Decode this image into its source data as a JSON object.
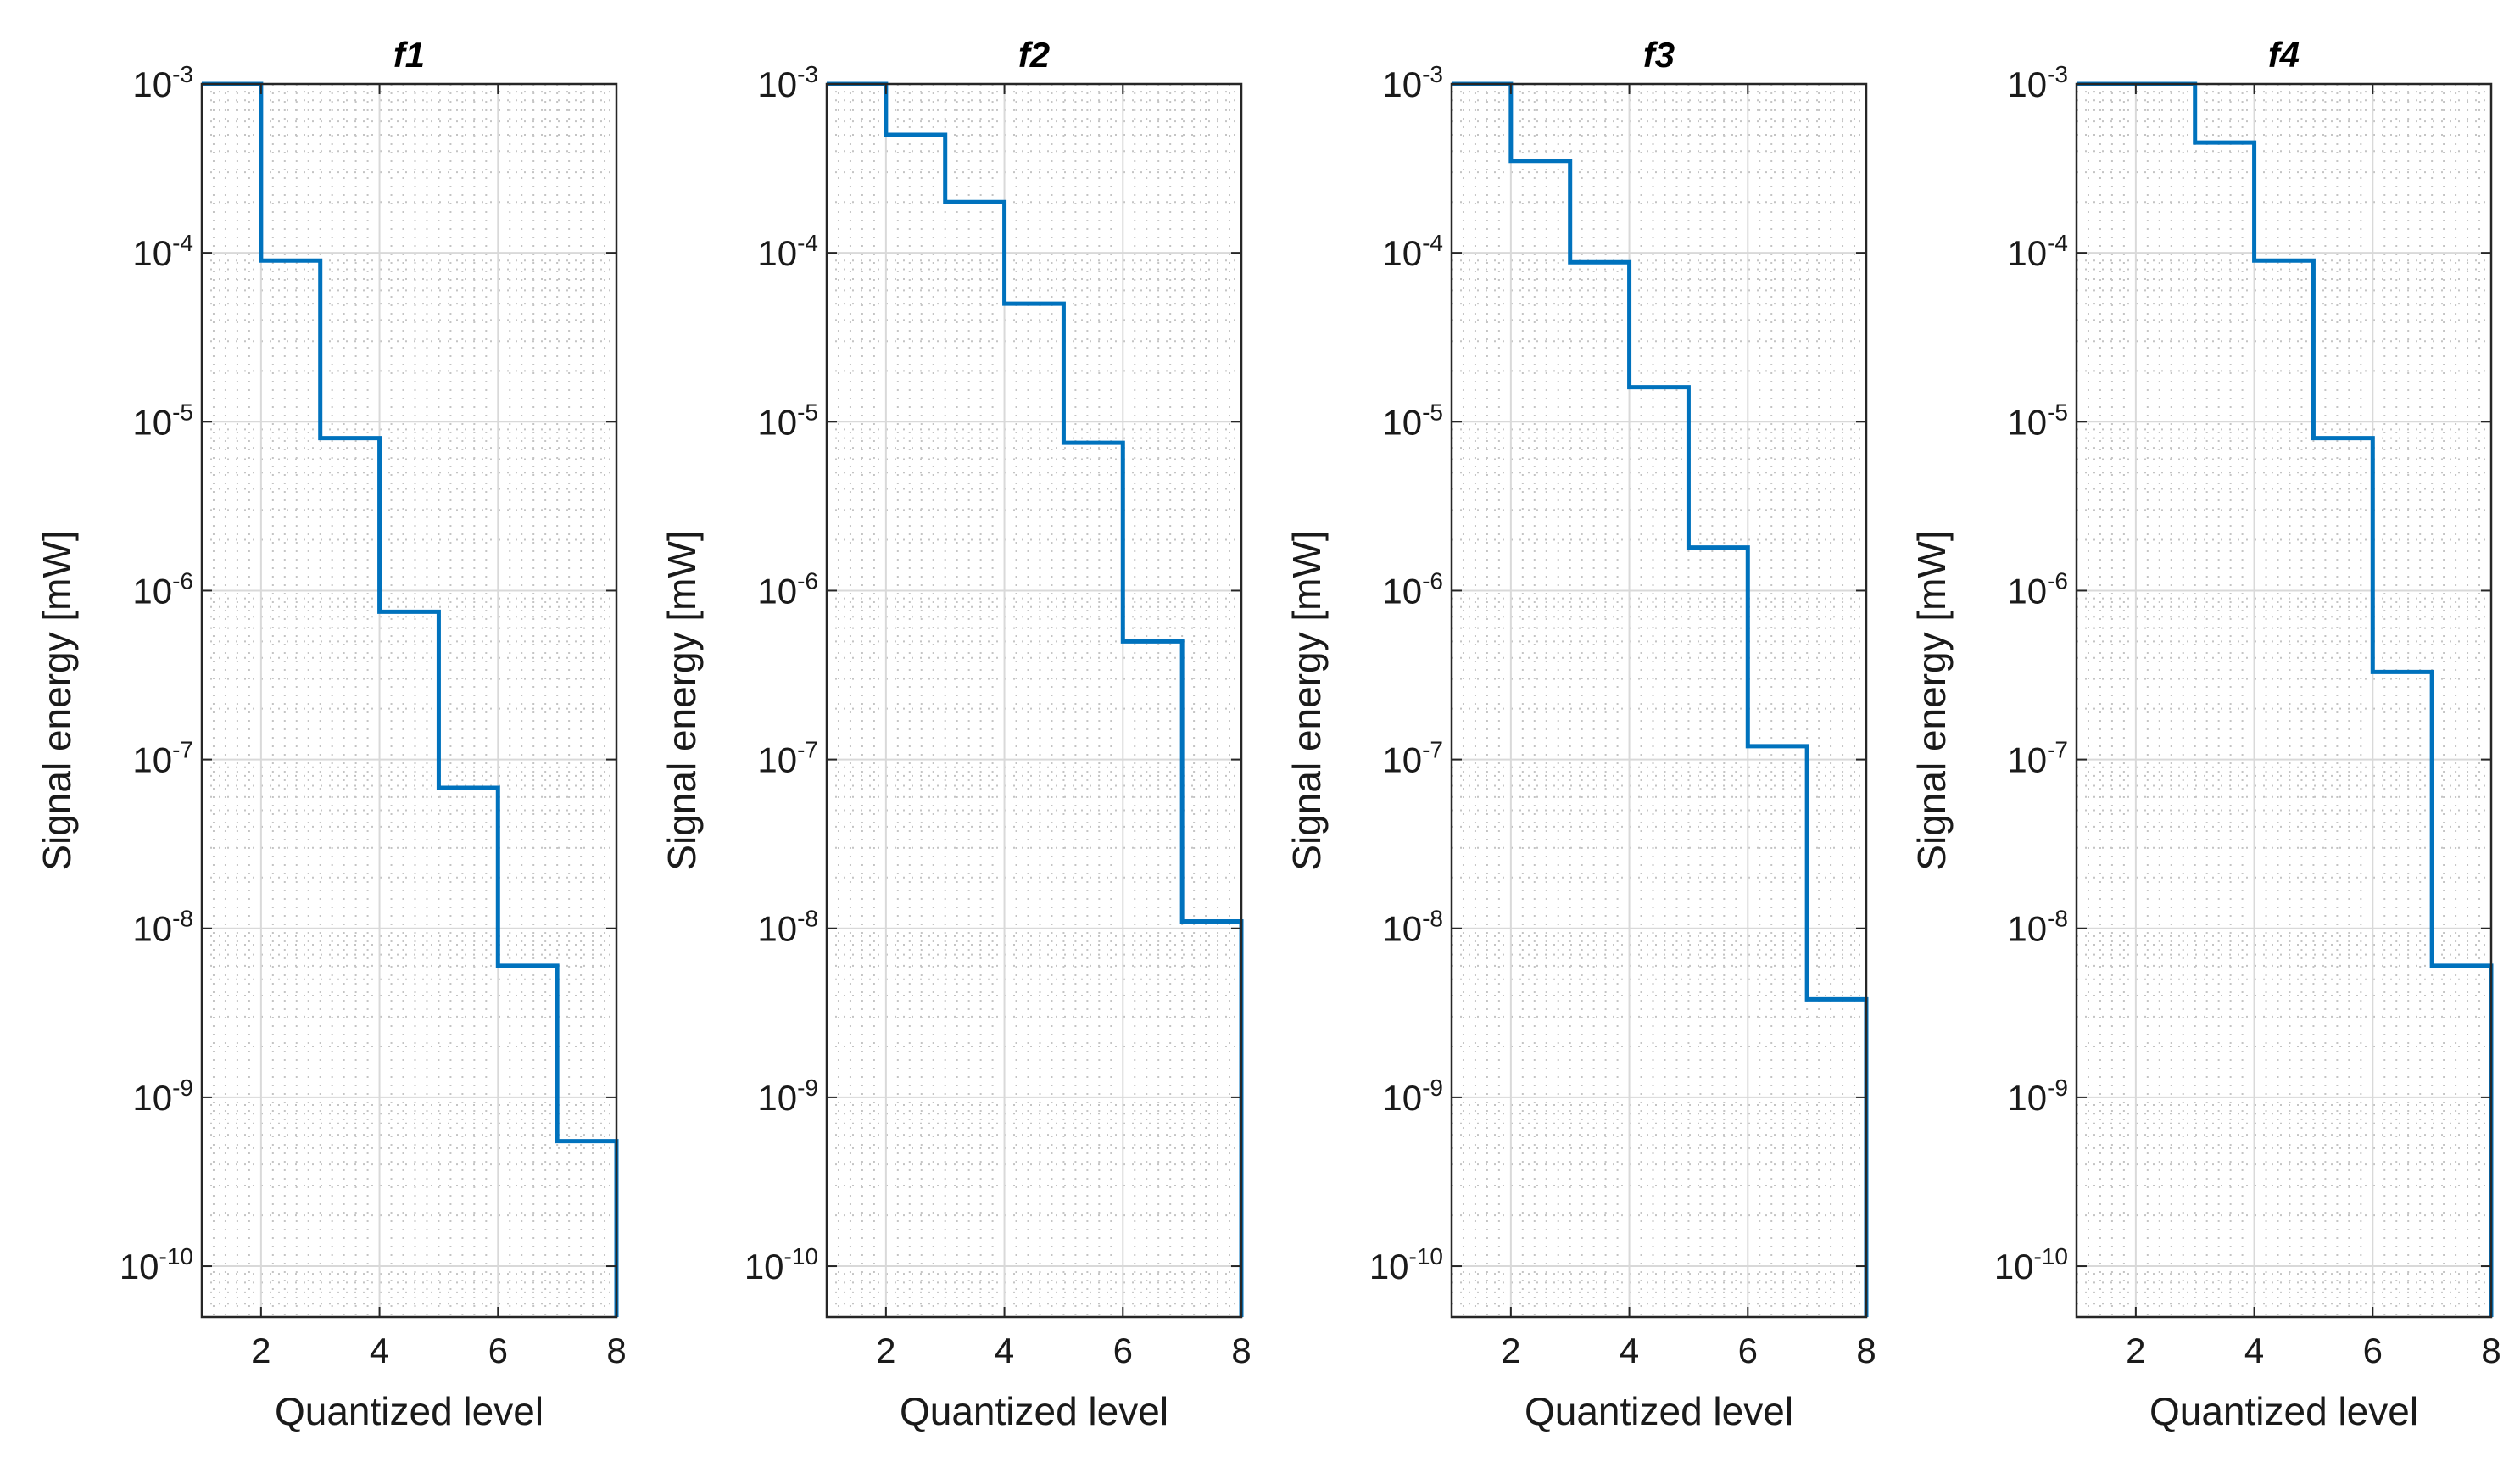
{
  "chart_data": [
    {
      "type": "line",
      "drawstyle": "steps-post",
      "title": "f1",
      "xlabel": "Quantized level",
      "ylabel": "Signal  energy [mW]",
      "xlim": [
        1,
        8
      ],
      "ylim": [
        5e-11,
        0.001
      ],
      "yscale": "log",
      "grid": true,
      "minor_grid": true,
      "xticks": [
        2,
        4,
        6,
        8
      ],
      "yticks": [
        {
          "base": "10",
          "exp": "-3",
          "value": 0.001
        },
        {
          "base": "10",
          "exp": "-4",
          "value": 0.0001
        },
        {
          "base": "10",
          "exp": "-5",
          "value": 1e-05
        },
        {
          "base": "10",
          "exp": "-6",
          "value": 1e-06
        },
        {
          "base": "10",
          "exp": "-7",
          "value": 1e-07
        },
        {
          "base": "10",
          "exp": "-8",
          "value": 1e-08
        },
        {
          "base": "10",
          "exp": "-9",
          "value": 1e-09
        },
        {
          "base": "10",
          "exp": "-10",
          "value": 1e-10
        }
      ],
      "line_color": "#0072BD",
      "x": [
        1,
        2,
        3,
        4,
        5,
        6,
        7,
        8
      ],
      "y": [
        0.001,
        9e-05,
        8e-06,
        7.5e-07,
        6.8e-08,
        6e-09,
        5.5e-10,
        5.5e-10
      ]
    },
    {
      "type": "line",
      "drawstyle": "steps-post",
      "title": "f2",
      "xlabel": "Quantized level",
      "ylabel": "Signal  energy [mW]",
      "xlim": [
        1,
        8
      ],
      "ylim": [
        5e-11,
        0.001
      ],
      "yscale": "log",
      "grid": true,
      "minor_grid": true,
      "xticks": [
        2,
        4,
        6,
        8
      ],
      "yticks": [
        {
          "base": "10",
          "exp": "-3",
          "value": 0.001
        },
        {
          "base": "10",
          "exp": "-4",
          "value": 0.0001
        },
        {
          "base": "10",
          "exp": "-5",
          "value": 1e-05
        },
        {
          "base": "10",
          "exp": "-6",
          "value": 1e-06
        },
        {
          "base": "10",
          "exp": "-7",
          "value": 1e-07
        },
        {
          "base": "10",
          "exp": "-8",
          "value": 1e-08
        },
        {
          "base": "10",
          "exp": "-9",
          "value": 1e-09
        },
        {
          "base": "10",
          "exp": "-10",
          "value": 1e-10
        }
      ],
      "line_color": "#0072BD",
      "x": [
        1,
        2,
        3,
        4,
        5,
        6,
        7,
        8
      ],
      "y": [
        0.001,
        0.0005,
        0.0002,
        5e-05,
        7.5e-06,
        5e-07,
        1.1e-08,
        1.1e-08
      ]
    },
    {
      "type": "line",
      "drawstyle": "steps-post",
      "title": "f3",
      "xlabel": "Quantized level",
      "ylabel": "Signal  energy [mW]",
      "xlim": [
        1,
        8
      ],
      "ylim": [
        5e-11,
        0.001
      ],
      "yscale": "log",
      "grid": true,
      "minor_grid": true,
      "xticks": [
        2,
        4,
        6,
        8
      ],
      "yticks": [
        {
          "base": "10",
          "exp": "-3",
          "value": 0.001
        },
        {
          "base": "10",
          "exp": "-4",
          "value": 0.0001
        },
        {
          "base": "10",
          "exp": "-5",
          "value": 1e-05
        },
        {
          "base": "10",
          "exp": "-6",
          "value": 1e-06
        },
        {
          "base": "10",
          "exp": "-7",
          "value": 1e-07
        },
        {
          "base": "10",
          "exp": "-8",
          "value": 1e-08
        },
        {
          "base": "10",
          "exp": "-9",
          "value": 1e-09
        },
        {
          "base": "10",
          "exp": "-10",
          "value": 1e-10
        }
      ],
      "line_color": "#0072BD",
      "x": [
        1,
        2,
        3,
        4,
        5,
        6,
        7,
        8
      ],
      "y": [
        0.001,
        0.00035,
        8.8e-05,
        1.6e-05,
        1.8e-06,
        1.2e-07,
        3.8e-09,
        3.8e-09
      ]
    },
    {
      "type": "line",
      "drawstyle": "steps-post",
      "title": "f4",
      "xlabel": "Quantized level",
      "ylabel": "Signal  energy [mW]",
      "xlim": [
        1,
        8
      ],
      "ylim": [
        5e-11,
        0.001
      ],
      "yscale": "log",
      "grid": true,
      "minor_grid": true,
      "xticks": [
        2,
        4,
        6,
        8
      ],
      "yticks": [
        {
          "base": "10",
          "exp": "-3",
          "value": 0.001
        },
        {
          "base": "10",
          "exp": "-4",
          "value": 0.0001
        },
        {
          "base": "10",
          "exp": "-5",
          "value": 1e-05
        },
        {
          "base": "10",
          "exp": "-6",
          "value": 1e-06
        },
        {
          "base": "10",
          "exp": "-7",
          "value": 1e-07
        },
        {
          "base": "10",
          "exp": "-8",
          "value": 1e-08
        },
        {
          "base": "10",
          "exp": "-9",
          "value": 1e-09
        },
        {
          "base": "10",
          "exp": "-10",
          "value": 1e-10
        }
      ],
      "line_color": "#0072BD",
      "x": [
        1,
        2,
        3,
        4,
        5,
        6,
        7,
        8
      ],
      "y": [
        0.001,
        0.001,
        0.00045,
        9e-05,
        8e-06,
        3.3e-07,
        6e-09,
        6e-09
      ]
    }
  ]
}
